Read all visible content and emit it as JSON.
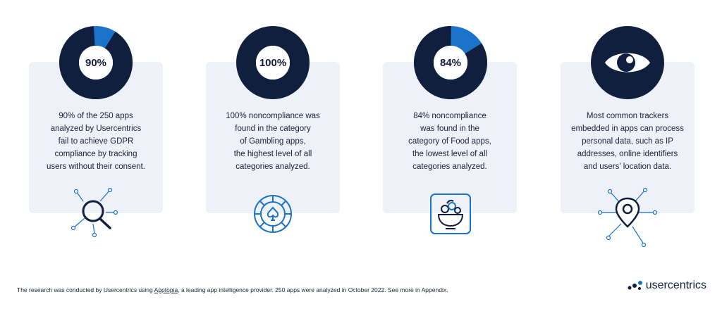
{
  "cards": [
    {
      "percent": "90%",
      "ratio": 0.9,
      "text": "90% of the 250 apps\nanalyzed by Usercentrics\nfail to achieve GDPR\ncompliance by tracking\nusers without their consent.",
      "icon": "magnifier-network-icon"
    },
    {
      "percent": "100%",
      "ratio": 1.0,
      "text": "100% noncompliance was\nfound in the category\nof Gambling apps,\nthe highest level of all\ncategories analyzed.",
      "icon": "casino-chip-icon"
    },
    {
      "percent": "84%",
      "ratio": 0.84,
      "text": "84% noncompliance\nwas found in the\ncategory of Food apps,\nthe lowest level of all\ncategories analyzed.",
      "icon": "food-bowl-icon"
    },
    {
      "text": "Most common trackers\nembedded in apps can process\npersonal data, such as IP\naddresses, online identifiers\nand users’ location data.",
      "icon": "eye-icon"
    }
  ],
  "colors": {
    "navy": "#0f1f3d",
    "accent": "#1a73c8",
    "card_bg": "#eef1f8"
  },
  "footnote": {
    "before": "The research was conducted by Usercentrics using ",
    "link": "Apptopia",
    "after": ", a leading app intelligence provider. 250 apps were analyzed in October 2022. See more in Appendix."
  },
  "logo": {
    "text": "usercentrics"
  }
}
